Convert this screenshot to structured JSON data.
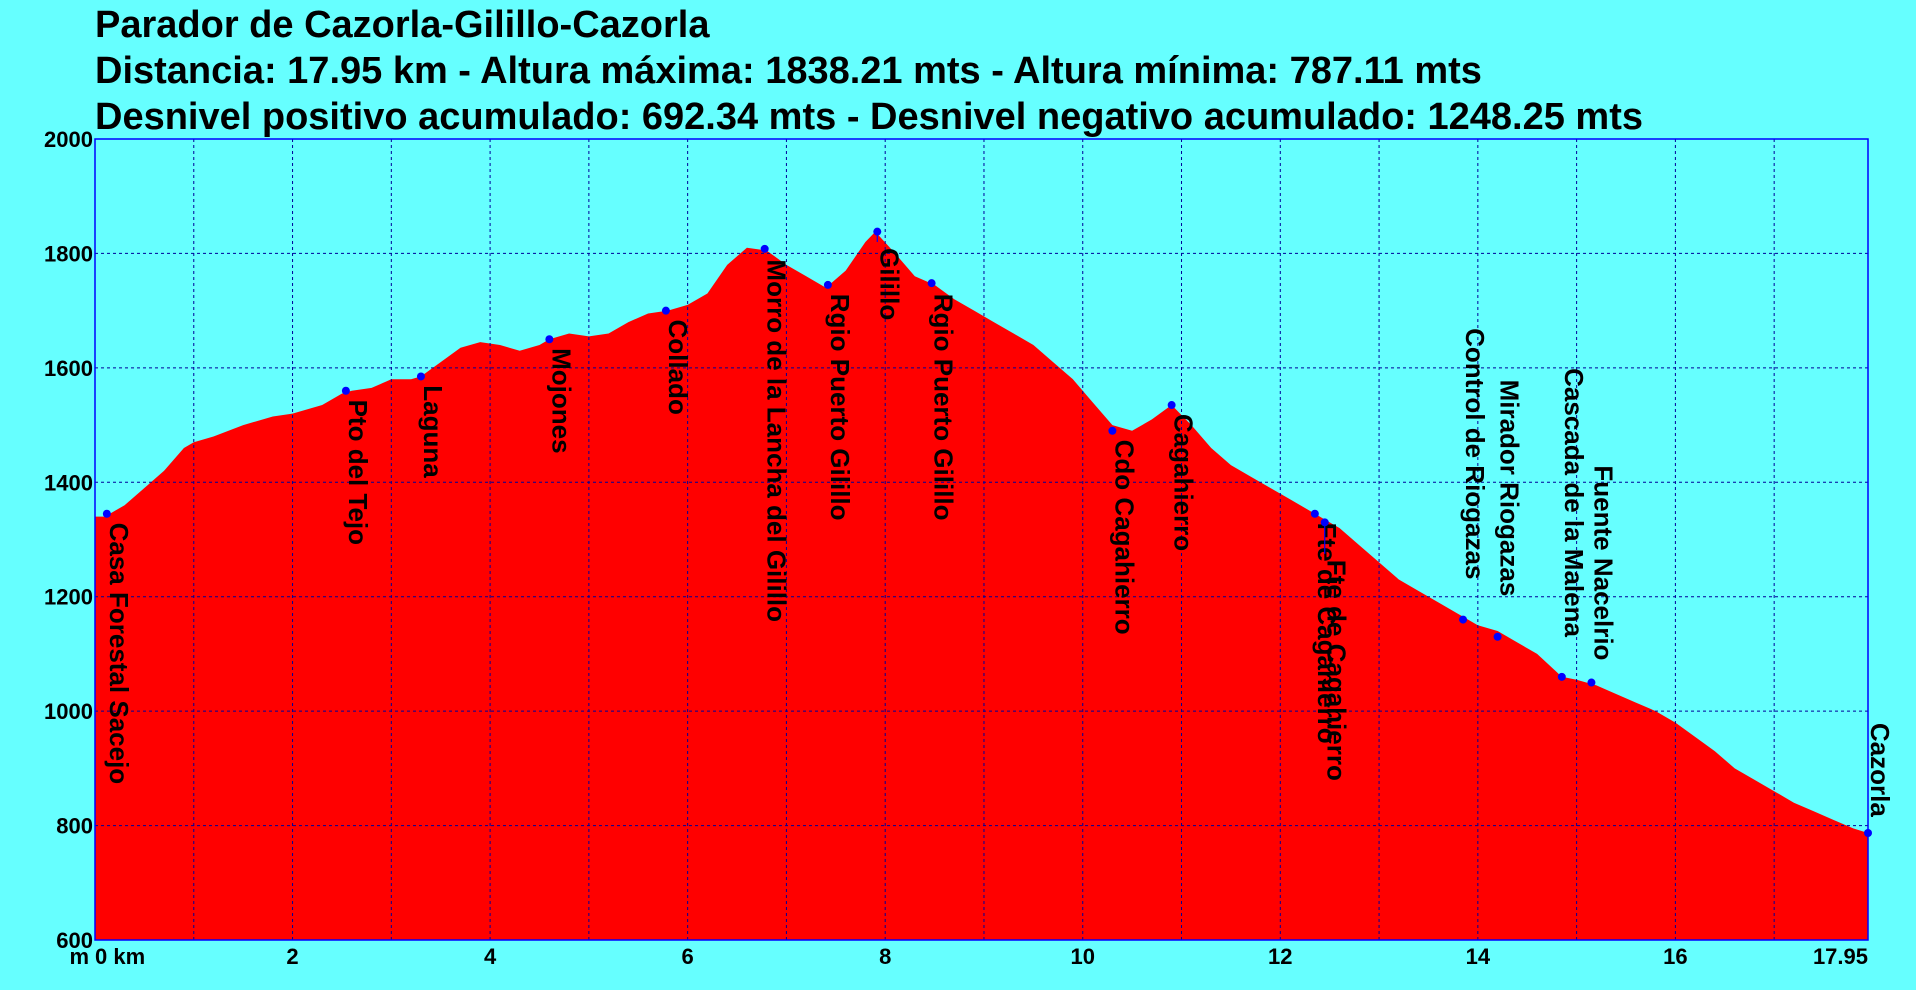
{
  "title_lines": [
    "Parador de Cazorla-Gilillo-Cazorla",
    "Distancia: 17.95 km - Altura máxima: 1838.21 mts - Altura mínima: 787.11 mts",
    "Desnivel positivo acumulado: 692.34 mts - Desnivel negativo acumulado: 1248.25 mts"
  ],
  "colors": {
    "background": "#66ffff",
    "area": "#ff0000",
    "frame": "#0000ff",
    "grid": "#000099",
    "marker": "#0000ff"
  },
  "chart_data": {
    "type": "area",
    "xlabel": "",
    "ylabel": "",
    "xlim": [
      0,
      17.95
    ],
    "ylim": [
      600,
      2000
    ],
    "x_ticks": [
      0,
      2,
      4,
      6,
      8,
      10,
      12,
      14,
      16,
      17.95
    ],
    "x_tick_labels": [
      "0 km",
      "2",
      "4",
      "6",
      "8",
      "10",
      "12",
      "14",
      "16",
      "17.95"
    ],
    "y_ticks": [
      600,
      800,
      1000,
      1200,
      1400,
      1600,
      1800,
      2000
    ],
    "y_tick_labels": [
      "600",
      "800",
      "1000",
      "1200",
      "1400",
      "1600",
      "1800",
      "2000"
    ],
    "y_unit_label": "m",
    "grid": true,
    "profile": {
      "x": [
        0,
        0.1,
        0.3,
        0.5,
        0.7,
        0.9,
        1.0,
        1.2,
        1.5,
        1.8,
        2.0,
        2.3,
        2.5,
        2.6,
        2.8,
        3.0,
        3.2,
        3.3,
        3.5,
        3.7,
        3.9,
        4.1,
        4.3,
        4.5,
        4.6,
        4.8,
        5.0,
        5.2,
        5.4,
        5.6,
        5.8,
        6.0,
        6.2,
        6.4,
        6.6,
        6.8,
        7.0,
        7.2,
        7.4,
        7.6,
        7.8,
        7.9,
        8.1,
        8.3,
        8.5,
        8.7,
        8.9,
        9.1,
        9.3,
        9.5,
        9.7,
        9.9,
        10.1,
        10.3,
        10.5,
        10.7,
        10.9,
        11.1,
        11.3,
        11.5,
        11.7,
        11.9,
        12.1,
        12.4,
        12.6,
        12.8,
        13.0,
        13.2,
        13.4,
        13.6,
        13.8,
        14.0,
        14.2,
        14.4,
        14.6,
        14.85,
        15.0,
        15.2,
        15.4,
        15.6,
        15.8,
        16.0,
        16.2,
        16.4,
        16.6,
        16.8,
        17.0,
        17.2,
        17.4,
        17.6,
        17.8,
        17.95
      ],
      "y": [
        1340,
        1340,
        1360,
        1390,
        1420,
        1460,
        1470,
        1480,
        1500,
        1515,
        1520,
        1535,
        1555,
        1560,
        1565,
        1580,
        1580,
        1585,
        1610,
        1635,
        1645,
        1640,
        1630,
        1640,
        1650,
        1660,
        1655,
        1660,
        1680,
        1695,
        1700,
        1710,
        1730,
        1780,
        1810,
        1805,
        1780,
        1760,
        1740,
        1770,
        1820,
        1838,
        1800,
        1760,
        1745,
        1720,
        1700,
        1680,
        1660,
        1640,
        1610,
        1580,
        1540,
        1500,
        1490,
        1510,
        1535,
        1500,
        1460,
        1430,
        1410,
        1390,
        1370,
        1340,
        1320,
        1290,
        1260,
        1230,
        1210,
        1190,
        1170,
        1150,
        1140,
        1120,
        1100,
        1060,
        1055,
        1045,
        1030,
        1015,
        1000,
        980,
        955,
        930,
        900,
        880,
        860,
        840,
        825,
        810,
        795,
        787
      ]
    },
    "waypoints": [
      {
        "name": "Casa Forestal Sacejo",
        "x": 0.12,
        "y": 1345,
        "ly": 1340
      },
      {
        "name": "Pto del Tejo",
        "x": 2.54,
        "y": 1560,
        "ly": 1555
      },
      {
        "name": "Laguna",
        "x": 3.3,
        "y": 1585,
        "ly": 1580
      },
      {
        "name": "Mojones",
        "x": 4.6,
        "y": 1650,
        "ly": 1645
      },
      {
        "name": "Collado",
        "x": 5.78,
        "y": 1700,
        "ly": 1695
      },
      {
        "name": "Morro de la Lancha del Gilillo",
        "x": 6.78,
        "y": 1808,
        "ly": 1800
      },
      {
        "name": "Rgio Puerto Gilillo",
        "x": 7.42,
        "y": 1745,
        "ly": 1740
      },
      {
        "name": "Gilillo",
        "x": 7.92,
        "y": 1838,
        "ly": 1820
      },
      {
        "name": "Rgio Puerto Gilillo",
        "x": 8.47,
        "y": 1748,
        "ly": 1740
      },
      {
        "name": "Cdo Cagahierro",
        "x": 10.3,
        "y": 1490,
        "ly": 1485
      },
      {
        "name": "Cagahierro",
        "x": 10.9,
        "y": 1535,
        "ly": 1530
      },
      {
        "name": "Fte de Cagahierro",
        "x": 12.35,
        "y": 1345,
        "ly": 1340
      },
      {
        "name": "Fte de Cagahierro",
        "x": 12.45,
        "y": 1330,
        "ly": 1275
      },
      {
        "name": "Control de Riogazas",
        "x": 13.85,
        "y": 1160,
        "ly": 1680
      },
      {
        "name": "Mirador Riogazas",
        "x": 14.2,
        "y": 1130,
        "ly": 1590
      },
      {
        "name": "Cascada de la Malena",
        "x": 14.85,
        "y": 1060,
        "ly": 1610
      },
      {
        "name": "Fuente Nacelrio",
        "x": 15.15,
        "y": 1050,
        "ly": 1440
      },
      {
        "name": "Cazorla",
        "x": 17.95,
        "y": 787,
        "ly": 990
      }
    ]
  }
}
